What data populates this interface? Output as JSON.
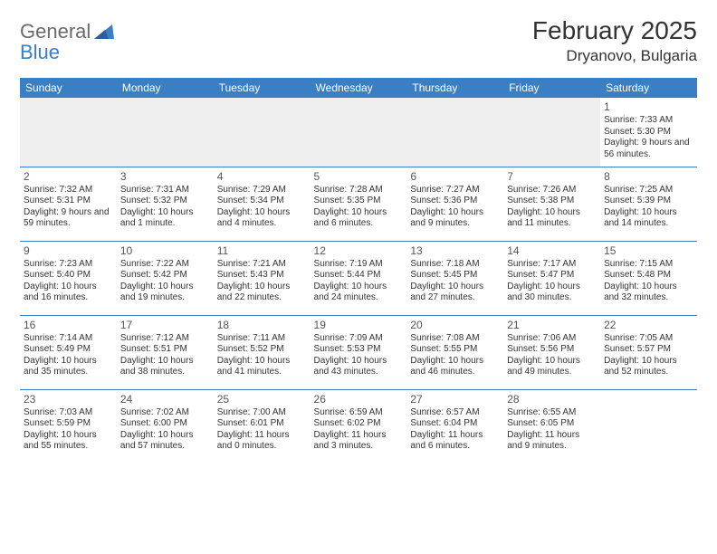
{
  "logo": {
    "line1": "General",
    "line2": "Blue"
  },
  "header": {
    "title": "February 2025",
    "location": "Dryanovo, Bulgaria"
  },
  "styling": {
    "accent_color": "#3a7fc4",
    "header_text_color": "#ffffff",
    "body_text_color": "#333333",
    "logo_gray": "#6a6a6a",
    "empty_cell_bg": "#efefef",
    "page_bg": "#ffffff",
    "title_fontsize": 28,
    "location_fontsize": 17,
    "dayheader_fontsize": 12,
    "cell_fontsize": 10,
    "daynum_fontsize": 12
  },
  "day_headers": [
    "Sunday",
    "Monday",
    "Tuesday",
    "Wednesday",
    "Thursday",
    "Friday",
    "Saturday"
  ],
  "weeks": [
    [
      null,
      null,
      null,
      null,
      null,
      null,
      {
        "n": "1",
        "sr": "7:33 AM",
        "ss": "5:30 PM",
        "dl": "9 hours and 56 minutes."
      }
    ],
    [
      {
        "n": "2",
        "sr": "7:32 AM",
        "ss": "5:31 PM",
        "dl": "9 hours and 59 minutes."
      },
      {
        "n": "3",
        "sr": "7:31 AM",
        "ss": "5:32 PM",
        "dl": "10 hours and 1 minute."
      },
      {
        "n": "4",
        "sr": "7:29 AM",
        "ss": "5:34 PM",
        "dl": "10 hours and 4 minutes."
      },
      {
        "n": "5",
        "sr": "7:28 AM",
        "ss": "5:35 PM",
        "dl": "10 hours and 6 minutes."
      },
      {
        "n": "6",
        "sr": "7:27 AM",
        "ss": "5:36 PM",
        "dl": "10 hours and 9 minutes."
      },
      {
        "n": "7",
        "sr": "7:26 AM",
        "ss": "5:38 PM",
        "dl": "10 hours and 11 minutes."
      },
      {
        "n": "8",
        "sr": "7:25 AM",
        "ss": "5:39 PM",
        "dl": "10 hours and 14 minutes."
      }
    ],
    [
      {
        "n": "9",
        "sr": "7:23 AM",
        "ss": "5:40 PM",
        "dl": "10 hours and 16 minutes."
      },
      {
        "n": "10",
        "sr": "7:22 AM",
        "ss": "5:42 PM",
        "dl": "10 hours and 19 minutes."
      },
      {
        "n": "11",
        "sr": "7:21 AM",
        "ss": "5:43 PM",
        "dl": "10 hours and 22 minutes."
      },
      {
        "n": "12",
        "sr": "7:19 AM",
        "ss": "5:44 PM",
        "dl": "10 hours and 24 minutes."
      },
      {
        "n": "13",
        "sr": "7:18 AM",
        "ss": "5:45 PM",
        "dl": "10 hours and 27 minutes."
      },
      {
        "n": "14",
        "sr": "7:17 AM",
        "ss": "5:47 PM",
        "dl": "10 hours and 30 minutes."
      },
      {
        "n": "15",
        "sr": "7:15 AM",
        "ss": "5:48 PM",
        "dl": "10 hours and 32 minutes."
      }
    ],
    [
      {
        "n": "16",
        "sr": "7:14 AM",
        "ss": "5:49 PM",
        "dl": "10 hours and 35 minutes."
      },
      {
        "n": "17",
        "sr": "7:12 AM",
        "ss": "5:51 PM",
        "dl": "10 hours and 38 minutes."
      },
      {
        "n": "18",
        "sr": "7:11 AM",
        "ss": "5:52 PM",
        "dl": "10 hours and 41 minutes."
      },
      {
        "n": "19",
        "sr": "7:09 AM",
        "ss": "5:53 PM",
        "dl": "10 hours and 43 minutes."
      },
      {
        "n": "20",
        "sr": "7:08 AM",
        "ss": "5:55 PM",
        "dl": "10 hours and 46 minutes."
      },
      {
        "n": "21",
        "sr": "7:06 AM",
        "ss": "5:56 PM",
        "dl": "10 hours and 49 minutes."
      },
      {
        "n": "22",
        "sr": "7:05 AM",
        "ss": "5:57 PM",
        "dl": "10 hours and 52 minutes."
      }
    ],
    [
      {
        "n": "23",
        "sr": "7:03 AM",
        "ss": "5:59 PM",
        "dl": "10 hours and 55 minutes."
      },
      {
        "n": "24",
        "sr": "7:02 AM",
        "ss": "6:00 PM",
        "dl": "10 hours and 57 minutes."
      },
      {
        "n": "25",
        "sr": "7:00 AM",
        "ss": "6:01 PM",
        "dl": "11 hours and 0 minutes."
      },
      {
        "n": "26",
        "sr": "6:59 AM",
        "ss": "6:02 PM",
        "dl": "11 hours and 3 minutes."
      },
      {
        "n": "27",
        "sr": "6:57 AM",
        "ss": "6:04 PM",
        "dl": "11 hours and 6 minutes."
      },
      {
        "n": "28",
        "sr": "6:55 AM",
        "ss": "6:05 PM",
        "dl": "11 hours and 9 minutes."
      },
      null
    ]
  ],
  "labels": {
    "sunrise": "Sunrise:",
    "sunset": "Sunset:",
    "daylight": "Daylight:"
  }
}
